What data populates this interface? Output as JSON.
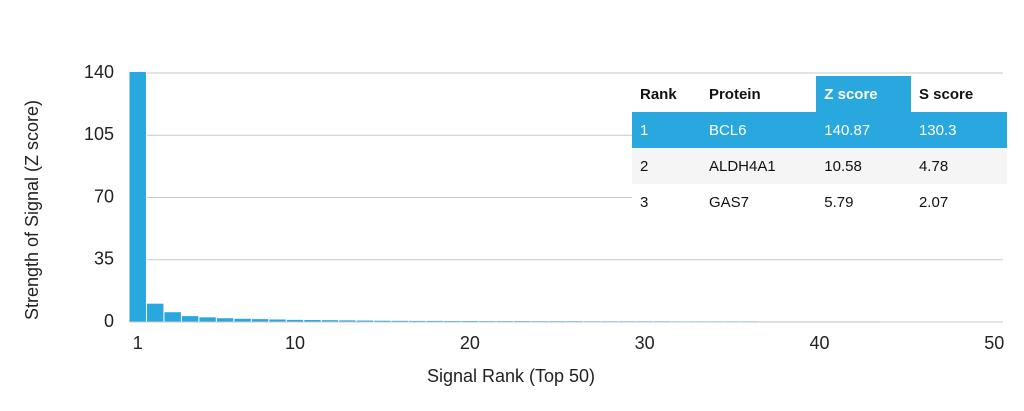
{
  "chart_data": {
    "type": "bar",
    "x_label": "Signal Rank (Top 50)",
    "y_label": "Strength of Signal (Z score)",
    "x": [
      1,
      2,
      3,
      4,
      5,
      6,
      7,
      8,
      9,
      10,
      11,
      12,
      13,
      14,
      15,
      16,
      17,
      18,
      19,
      20,
      21,
      22,
      23,
      24,
      25,
      26,
      27,
      28,
      29,
      30,
      31,
      32,
      33,
      34,
      35,
      36,
      37,
      38,
      39,
      40,
      41,
      42,
      43,
      44,
      45,
      46,
      47,
      48,
      49,
      50
    ],
    "values": [
      140.87,
      10.58,
      5.79,
      3.6,
      2.9,
      2.4,
      2.1,
      1.9,
      1.7,
      1.5,
      1.4,
      1.3,
      1.2,
      1.1,
      1.0,
      0.95,
      0.9,
      0.9,
      0.85,
      0.85,
      0.8,
      0.8,
      0.8,
      0.75,
      0.75,
      0.75,
      0.7,
      0.7,
      0.7,
      0.7,
      0.7,
      0.65,
      0.65,
      0.65,
      0.65,
      0.65,
      0.6,
      0.6,
      0.6,
      0.6,
      0.6,
      0.6,
      0.6,
      0.55,
      0.55,
      0.55,
      0.55,
      0.55,
      0.55,
      0.5
    ],
    "color": "#29a8e0",
    "xlim": [
      0.5,
      50.5
    ],
    "xticks": [
      1,
      10,
      20,
      30,
      40,
      50
    ],
    "ylim": [
      0,
      140
    ],
    "yticks": [
      0,
      35,
      70,
      105,
      140
    ],
    "grid": true
  },
  "table": {
    "columns": [
      "Rank",
      "Protein",
      "Z score",
      "S score"
    ],
    "rows": [
      [
        "1",
        "BCL6",
        "140.87",
        "130.3"
      ],
      [
        "2",
        "ALDH4A1",
        "10.58",
        "4.78"
      ],
      [
        "3",
        "GAS7",
        "5.79",
        "2.07"
      ]
    ]
  }
}
